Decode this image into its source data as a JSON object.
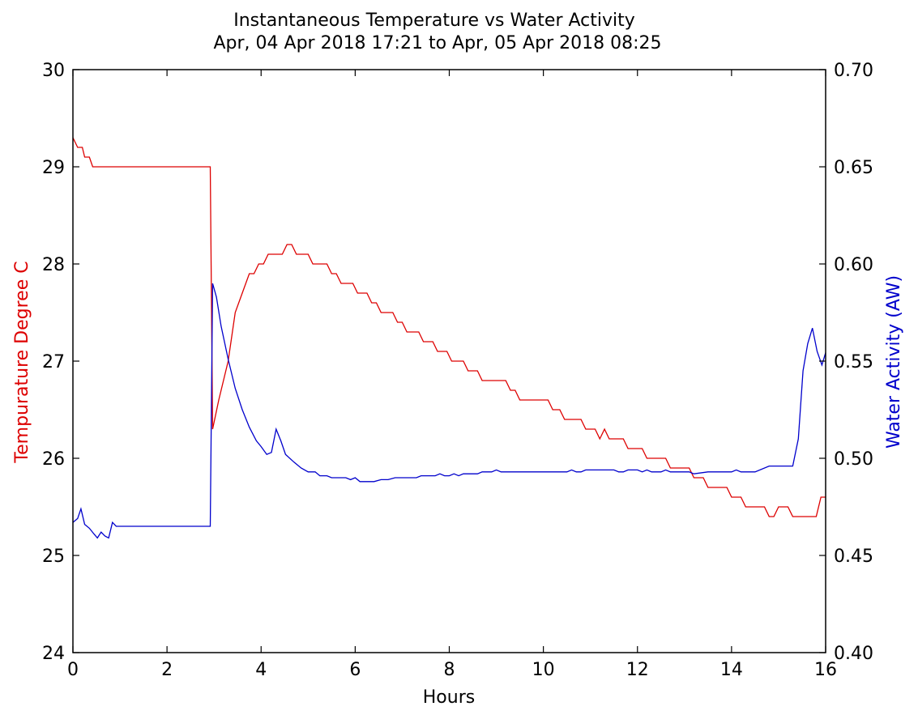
{
  "chart_data": {
    "type": "line",
    "title": "Instantaneous Temperature vs Water Activity",
    "subtitle": "Apr, 04 Apr 2018 17:21 to Apr, 05 Apr 2018 08:25",
    "xlabel": "Hours",
    "ylabel_left": "Tempurature Degree C",
    "ylabel_right": "Water Activity (AW)",
    "xlim": [
      0,
      16
    ],
    "ylim_left": [
      24,
      30
    ],
    "ylim_right": [
      0.4,
      0.7
    ],
    "x_ticks": [
      "0",
      "2",
      "4",
      "6",
      "8",
      "10",
      "12",
      "14",
      "16"
    ],
    "y_ticks_left": [
      "24",
      "25",
      "26",
      "27",
      "28",
      "29",
      "30"
    ],
    "y_ticks_right": [
      "0.40",
      "0.45",
      "0.50",
      "0.55",
      "0.60",
      "0.65",
      "0.70"
    ],
    "grid": false,
    "legend": "none",
    "colors": {
      "temperature": "#dd0000",
      "water_activity": "#0000cc",
      "left_axis_label": "#dd0000",
      "right_axis_label": "#0000cc",
      "axis": "#000000"
    },
    "series": [
      {
        "axis": "left",
        "points": [
          [
            0.0,
            29.3
          ],
          [
            0.05,
            29.25
          ],
          [
            0.1,
            29.2
          ],
          [
            0.2,
            29.2
          ],
          [
            0.25,
            29.1
          ],
          [
            0.35,
            29.1
          ],
          [
            0.42,
            29.0
          ],
          [
            1.0,
            29.0
          ],
          [
            2.0,
            29.0
          ],
          [
            2.92,
            29.0
          ],
          [
            2.97,
            26.3
          ],
          [
            3.1,
            26.6
          ],
          [
            3.3,
            27.0
          ],
          [
            3.45,
            27.5
          ],
          [
            3.6,
            27.7
          ],
          [
            3.75,
            27.9
          ],
          [
            3.85,
            27.9
          ],
          [
            3.95,
            28.0
          ],
          [
            4.05,
            28.0
          ],
          [
            4.15,
            28.1
          ],
          [
            4.45,
            28.1
          ],
          [
            4.55,
            28.2
          ],
          [
            4.65,
            28.2
          ],
          [
            4.75,
            28.1
          ],
          [
            5.0,
            28.1
          ],
          [
            5.1,
            28.0
          ],
          [
            5.4,
            28.0
          ],
          [
            5.5,
            27.9
          ],
          [
            5.6,
            27.9
          ],
          [
            5.7,
            27.8
          ],
          [
            5.95,
            27.8
          ],
          [
            6.05,
            27.7
          ],
          [
            6.25,
            27.7
          ],
          [
            6.35,
            27.6
          ],
          [
            6.45,
            27.6
          ],
          [
            6.55,
            27.5
          ],
          [
            6.8,
            27.5
          ],
          [
            6.9,
            27.4
          ],
          [
            7.0,
            27.4
          ],
          [
            7.1,
            27.3
          ],
          [
            7.35,
            27.3
          ],
          [
            7.45,
            27.2
          ],
          [
            7.65,
            27.2
          ],
          [
            7.75,
            27.1
          ],
          [
            7.95,
            27.1
          ],
          [
            8.05,
            27.0
          ],
          [
            8.3,
            27.0
          ],
          [
            8.4,
            26.9
          ],
          [
            8.6,
            26.9
          ],
          [
            8.7,
            26.8
          ],
          [
            9.2,
            26.8
          ],
          [
            9.3,
            26.7
          ],
          [
            9.4,
            26.7
          ],
          [
            9.5,
            26.6
          ],
          [
            10.1,
            26.6
          ],
          [
            10.2,
            26.5
          ],
          [
            10.35,
            26.5
          ],
          [
            10.45,
            26.4
          ],
          [
            10.8,
            26.4
          ],
          [
            10.9,
            26.3
          ],
          [
            11.1,
            26.3
          ],
          [
            11.2,
            26.2
          ],
          [
            11.3,
            26.3
          ],
          [
            11.4,
            26.2
          ],
          [
            11.7,
            26.2
          ],
          [
            11.8,
            26.1
          ],
          [
            12.1,
            26.1
          ],
          [
            12.2,
            26.0
          ],
          [
            12.6,
            26.0
          ],
          [
            12.7,
            25.9
          ],
          [
            13.1,
            25.9
          ],
          [
            13.2,
            25.8
          ],
          [
            13.4,
            25.8
          ],
          [
            13.5,
            25.7
          ],
          [
            13.9,
            25.7
          ],
          [
            14.0,
            25.6
          ],
          [
            14.2,
            25.6
          ],
          [
            14.3,
            25.5
          ],
          [
            14.7,
            25.5
          ],
          [
            14.8,
            25.4
          ],
          [
            14.9,
            25.4
          ],
          [
            15.0,
            25.5
          ],
          [
            15.2,
            25.5
          ],
          [
            15.3,
            25.4
          ],
          [
            15.8,
            25.4
          ],
          [
            15.9,
            25.6
          ],
          [
            16.1,
            25.6
          ],
          [
            16.2,
            25.8
          ],
          [
            16.35,
            25.8
          ]
        ]
      },
      {
        "axis": "right",
        "points": [
          [
            0.0,
            0.467
          ],
          [
            0.1,
            0.469
          ],
          [
            0.17,
            0.474
          ],
          [
            0.25,
            0.466
          ],
          [
            0.35,
            0.464
          ],
          [
            0.45,
            0.461
          ],
          [
            0.52,
            0.459
          ],
          [
            0.6,
            0.462
          ],
          [
            0.68,
            0.46
          ],
          [
            0.76,
            0.459
          ],
          [
            0.84,
            0.467
          ],
          [
            0.92,
            0.465
          ],
          [
            1.5,
            0.465
          ],
          [
            2.0,
            0.465
          ],
          [
            2.5,
            0.465
          ],
          [
            2.92,
            0.465
          ],
          [
            2.97,
            0.59
          ],
          [
            3.05,
            0.583
          ],
          [
            3.15,
            0.568
          ],
          [
            3.3,
            0.551
          ],
          [
            3.45,
            0.536
          ],
          [
            3.6,
            0.525
          ],
          [
            3.75,
            0.516
          ],
          [
            3.9,
            0.509
          ],
          [
            4.0,
            0.506
          ],
          [
            4.12,
            0.502
          ],
          [
            4.22,
            0.503
          ],
          [
            4.32,
            0.515
          ],
          [
            4.42,
            0.509
          ],
          [
            4.52,
            0.502
          ],
          [
            4.7,
            0.498
          ],
          [
            4.85,
            0.495
          ],
          [
            5.0,
            0.493
          ],
          [
            5.15,
            0.493
          ],
          [
            5.25,
            0.491
          ],
          [
            5.4,
            0.491
          ],
          [
            5.5,
            0.49
          ],
          [
            5.8,
            0.49
          ],
          [
            5.9,
            0.489
          ],
          [
            6.0,
            0.49
          ],
          [
            6.1,
            0.488
          ],
          [
            6.4,
            0.488
          ],
          [
            6.55,
            0.489
          ],
          [
            6.7,
            0.489
          ],
          [
            6.85,
            0.49
          ],
          [
            7.3,
            0.49
          ],
          [
            7.4,
            0.491
          ],
          [
            7.7,
            0.491
          ],
          [
            7.8,
            0.492
          ],
          [
            7.9,
            0.491
          ],
          [
            8.0,
            0.491
          ],
          [
            8.1,
            0.492
          ],
          [
            8.2,
            0.491
          ],
          [
            8.3,
            0.492
          ],
          [
            8.6,
            0.492
          ],
          [
            8.7,
            0.493
          ],
          [
            8.9,
            0.493
          ],
          [
            9.0,
            0.494
          ],
          [
            9.1,
            0.493
          ],
          [
            9.5,
            0.493
          ],
          [
            10.0,
            0.493
          ],
          [
            10.5,
            0.493
          ],
          [
            10.6,
            0.494
          ],
          [
            10.7,
            0.493
          ],
          [
            10.8,
            0.493
          ],
          [
            10.9,
            0.494
          ],
          [
            11.5,
            0.494
          ],
          [
            11.6,
            0.493
          ],
          [
            11.7,
            0.493
          ],
          [
            11.8,
            0.494
          ],
          [
            12.0,
            0.494
          ],
          [
            12.1,
            0.493
          ],
          [
            12.2,
            0.494
          ],
          [
            12.3,
            0.493
          ],
          [
            12.5,
            0.493
          ],
          [
            12.6,
            0.494
          ],
          [
            12.7,
            0.493
          ],
          [
            13.0,
            0.493
          ],
          [
            13.1,
            0.493
          ],
          [
            13.2,
            0.492
          ],
          [
            13.5,
            0.493
          ],
          [
            13.7,
            0.493
          ],
          [
            14.0,
            0.493
          ],
          [
            14.1,
            0.494
          ],
          [
            14.2,
            0.493
          ],
          [
            14.5,
            0.493
          ],
          [
            14.8,
            0.496
          ],
          [
            15.3,
            0.496
          ],
          [
            15.42,
            0.51
          ],
          [
            15.52,
            0.545
          ],
          [
            15.62,
            0.559
          ],
          [
            15.72,
            0.567
          ],
          [
            15.82,
            0.555
          ],
          [
            15.92,
            0.548
          ],
          [
            16.02,
            0.556
          ],
          [
            16.12,
            0.566
          ],
          [
            16.22,
            0.555
          ],
          [
            16.32,
            0.578
          ],
          [
            16.42,
            0.584
          ],
          [
            16.52,
            0.585
          ],
          [
            16.6,
            0.587
          ]
        ]
      }
    ]
  }
}
